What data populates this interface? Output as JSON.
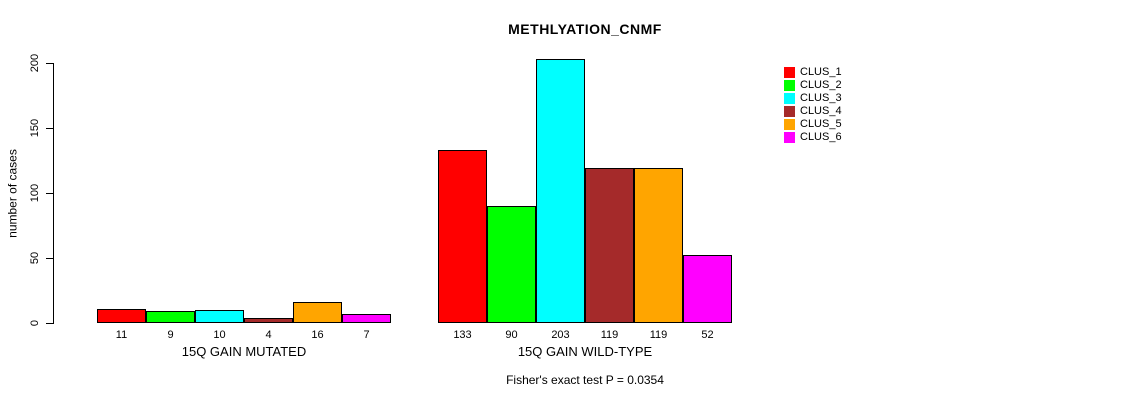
{
  "chart_data": {
    "type": "bar",
    "title": "METHLYATION_CNMF",
    "ylabel": "number of cases",
    "xlabel": "",
    "caption": "Fisher's exact test P = 0.0354",
    "ylim": [
      0,
      200
    ],
    "yticks": [
      0,
      50,
      100,
      150,
      200
    ],
    "grid": false,
    "legend_position": "top-right",
    "legend": [
      {
        "label": "CLUS_1",
        "color": "#FF0000"
      },
      {
        "label": "CLUS_2",
        "color": "#00FF00"
      },
      {
        "label": "CLUS_3",
        "color": "#00FFFF"
      },
      {
        "label": "CLUS_4",
        "color": "#A52A2A"
      },
      {
        "label": "CLUS_5",
        "color": "#FFA500"
      },
      {
        "label": "CLUS_6",
        "color": "#FF00FF"
      }
    ],
    "groups": [
      {
        "label": "15Q GAIN MUTATED",
        "values": [
          11,
          9,
          10,
          4,
          16,
          7
        ]
      },
      {
        "label": "15Q GAIN WILD-TYPE",
        "values": [
          133,
          90,
          203,
          119,
          119,
          52
        ]
      }
    ],
    "bar_value_labels_shown": true
  }
}
